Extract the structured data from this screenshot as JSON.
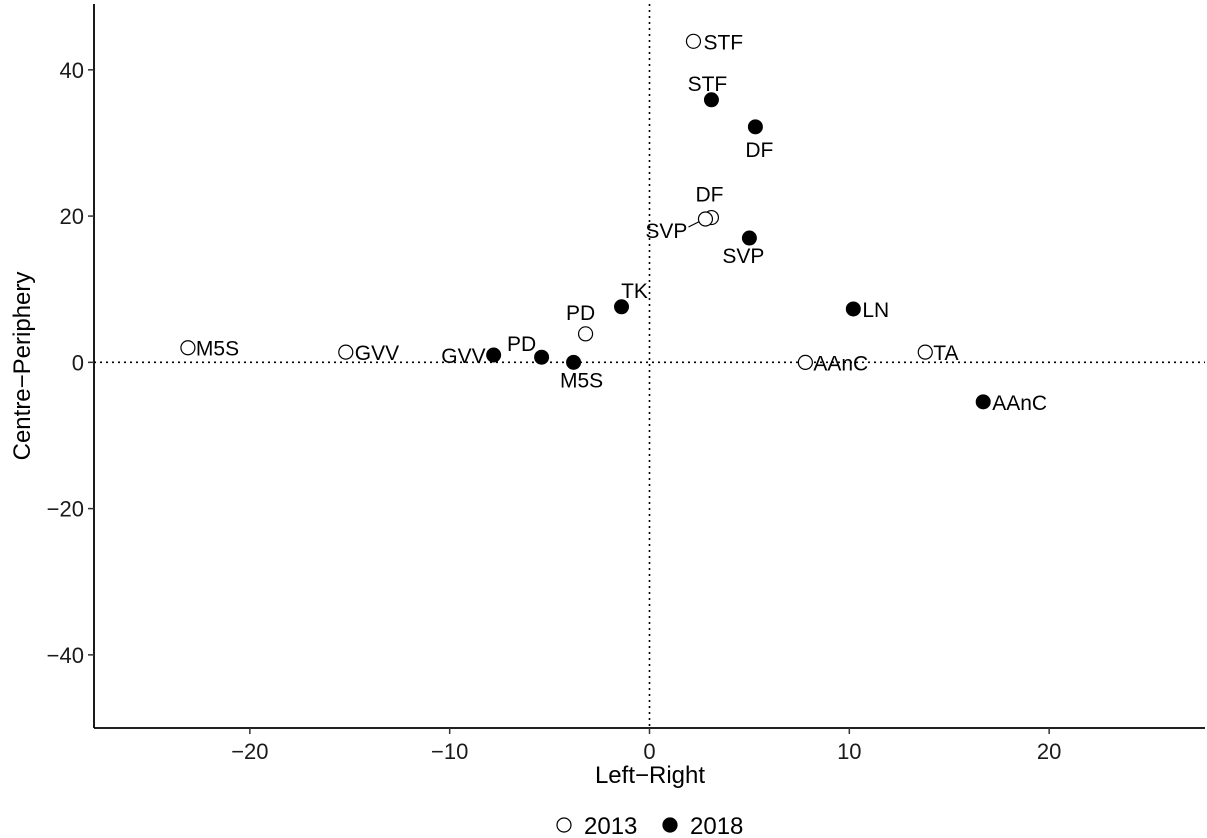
{
  "chart_data": {
    "type": "scatter",
    "xlabel": "Left−Right",
    "ylabel": "Centre−Periphery",
    "xlim": [
      -27.8,
      27.8
    ],
    "ylim": [
      -50,
      49
    ],
    "x_ticks": [
      -20,
      -10,
      0,
      10,
      20
    ],
    "y_ticks": [
      -40,
      -20,
      0,
      20,
      40
    ],
    "tick_labels": {
      "x": [
        "−20",
        "−10",
        "0",
        "10",
        "20"
      ],
      "y": [
        "−40",
        "−20",
        "0",
        "20",
        "40"
      ]
    },
    "reference_lines": {
      "x": 0,
      "y": 0,
      "style": "dotted"
    },
    "grid": false,
    "legend_position": "bottom",
    "series": [
      {
        "name": "2013",
        "marker": "open-circle",
        "points": [
          {
            "label": "STF",
            "x": 2.2,
            "y": 43.9
          },
          {
            "label": "DF",
            "x": 3.1,
            "y": 19.8
          },
          {
            "label": "SVP",
            "x": 2.8,
            "y": 19.6
          },
          {
            "label": "PD",
            "x": -3.2,
            "y": 3.9
          },
          {
            "label": "M5S",
            "x": -23.1,
            "y": 2.0
          },
          {
            "label": "GVV",
            "x": -15.2,
            "y": 1.4
          },
          {
            "label": "AAnC",
            "x": 7.8,
            "y": 0.0
          },
          {
            "label": "TA",
            "x": 13.8,
            "y": 1.4
          }
        ]
      },
      {
        "name": "2018",
        "marker": "filled-circle",
        "points": [
          {
            "label": "STF",
            "x": 3.1,
            "y": 35.9
          },
          {
            "label": "DF",
            "x": 5.3,
            "y": 32.2
          },
          {
            "label": "SVP",
            "x": 5.0,
            "y": 17.0
          },
          {
            "label": "TK",
            "x": -1.4,
            "y": 7.6
          },
          {
            "label": "LN",
            "x": 10.2,
            "y": 7.3
          },
          {
            "label": "PD",
            "x": -5.4,
            "y": 0.7
          },
          {
            "label": "GVV",
            "x": -7.8,
            "y": 1.0
          },
          {
            "label": "M5S",
            "x": -3.8,
            "y": 0.0
          },
          {
            "label": "AAnC",
            "x": 16.7,
            "y": -5.4
          }
        ]
      }
    ],
    "legend": [
      {
        "name": "2013",
        "marker": "open-circle"
      },
      {
        "name": "2018",
        "marker": "filled-circle"
      }
    ]
  }
}
